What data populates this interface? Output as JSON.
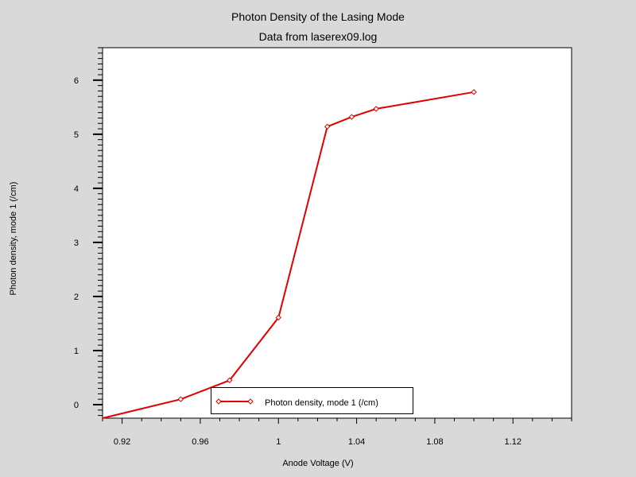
{
  "chart_data": {
    "type": "line",
    "title": "Photon Density of the Lasing Mode",
    "subtitle": "Data from laserex09.log",
    "xlabel": "Anode Voltage (V)",
    "ylabel": "Photon density, mode 1 (/cm)",
    "xlim": [
      0.91,
      1.15
    ],
    "ylim": [
      -0.25,
      6.6
    ],
    "x_ticks": [
      "0.92",
      "0.96",
      "1",
      "1.04",
      "1.08",
      "1.12"
    ],
    "y_ticks": [
      "0",
      "1",
      "2",
      "3",
      "4",
      "5",
      "6"
    ],
    "grid": false,
    "legend_position": "bottom-center",
    "series": [
      {
        "name": "Photon density, mode 1 (/cm)",
        "color": "#e00000",
        "marker": "diamond",
        "x": [
          0.91,
          0.95,
          0.975,
          1.0,
          1.025,
          1.0375,
          1.05,
          1.1
        ],
        "y": [
          -0.25,
          0.1,
          0.45,
          1.61,
          5.14,
          5.32,
          5.47,
          5.78
        ]
      }
    ]
  }
}
